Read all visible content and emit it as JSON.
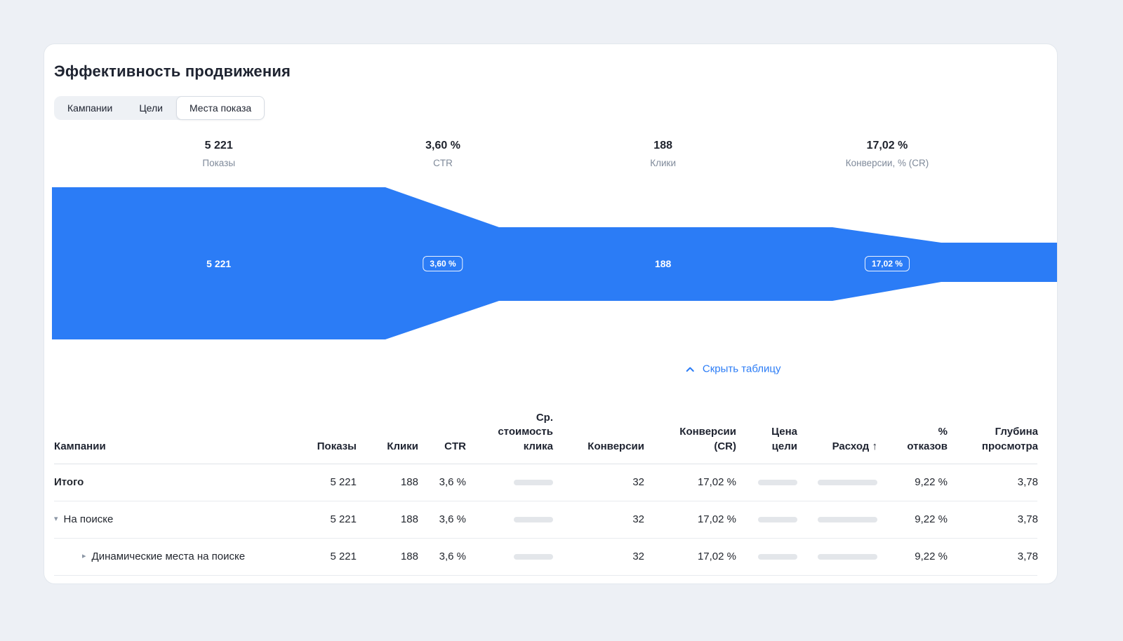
{
  "card": {
    "title": "Эффективность продвижения"
  },
  "tabs": {
    "items": [
      {
        "id": "campaigns",
        "label": "Кампании",
        "active": false
      },
      {
        "id": "goals",
        "label": "Цели",
        "active": false
      },
      {
        "id": "placements",
        "label": "Места показа",
        "active": true
      }
    ]
  },
  "funnel": {
    "color": "#2b7cf6",
    "stages": [
      {
        "id": "impressions",
        "value": "5 221",
        "label": "Показы",
        "bar_text": "5 221",
        "badge": false
      },
      {
        "id": "ctr",
        "value": "3,60 %",
        "label": "CTR",
        "bar_text": "3,60 %",
        "badge": true
      },
      {
        "id": "clicks",
        "value": "188",
        "label": "Клики",
        "bar_text": "188",
        "badge": false
      },
      {
        "id": "cr",
        "value": "17,02 %",
        "label": "Конверсии, % (CR)",
        "bar_text": "17,02 %",
        "badge": true
      }
    ]
  },
  "toggle": {
    "label": "Скрыть таблицу"
  },
  "table": {
    "columns": [
      {
        "id": "campaigns",
        "label": "Кампании",
        "align": "left",
        "sortable": false
      },
      {
        "id": "impressions",
        "label": "Показы",
        "align": "right",
        "sortable": true
      },
      {
        "id": "clicks",
        "label": "Клики",
        "align": "right",
        "sortable": true
      },
      {
        "id": "ctr",
        "label": "CTR",
        "align": "right",
        "sortable": true
      },
      {
        "id": "avg-cpc",
        "label": "Ср.\nстоимость\nклика",
        "align": "right",
        "sortable": true
      },
      {
        "id": "conversions",
        "label": "Конверсии",
        "align": "right",
        "sortable": true
      },
      {
        "id": "cr",
        "label": "Конверсии\n(CR)",
        "align": "right",
        "sortable": true
      },
      {
        "id": "goal-price",
        "label": "Цена\nцели",
        "align": "right",
        "sortable": true
      },
      {
        "id": "cost",
        "label": "Расход ↑",
        "align": "right",
        "sortable": true
      },
      {
        "id": "bounce-rate",
        "label": "%\nотказов",
        "align": "right",
        "sortable": true
      },
      {
        "id": "view-depth",
        "label": "Глубина\nпросмотра",
        "align": "right",
        "sortable": true
      }
    ],
    "rows": [
      {
        "name": "Итого",
        "bold": true,
        "level": 0,
        "arrow": null,
        "cells": [
          "5 221",
          "188",
          "3,6 %",
          {
            "pill": true
          },
          "32",
          "17,02 %",
          {
            "pill": true
          },
          {
            "pill": true
          },
          "9,22 %",
          "3,78"
        ]
      },
      {
        "name": "На поиске",
        "bold": false,
        "level": 1,
        "arrow": "expanded",
        "cells": [
          "5 221",
          "188",
          "3,6 %",
          {
            "pill": true
          },
          "32",
          "17,02 %",
          {
            "pill": true
          },
          {
            "pill": true
          },
          "9,22 %",
          "3,78"
        ]
      },
      {
        "name": "Динамические места на поиске",
        "bold": false,
        "level": 2,
        "arrow": "collapsed",
        "cells": [
          "5 221",
          "188",
          "3,6 %",
          {
            "pill": true
          },
          "32",
          "17,02 %",
          {
            "pill": true
          },
          {
            "pill": true
          },
          "9,22 %",
          "3,78"
        ]
      }
    ]
  },
  "chart_data": {
    "type": "funnel",
    "title": "Эффективность продвижения",
    "stages": [
      {
        "label": "Показы",
        "value": 5221,
        "display": "5 221"
      },
      {
        "label": "CTR",
        "value": 3.6,
        "display": "3,60 %"
      },
      {
        "label": "Клики",
        "value": 188,
        "display": "188"
      },
      {
        "label": "Конверсии, % (CR)",
        "value": 17.02,
        "display": "17,02 %"
      }
    ],
    "legend_position": "none",
    "grid": false
  }
}
